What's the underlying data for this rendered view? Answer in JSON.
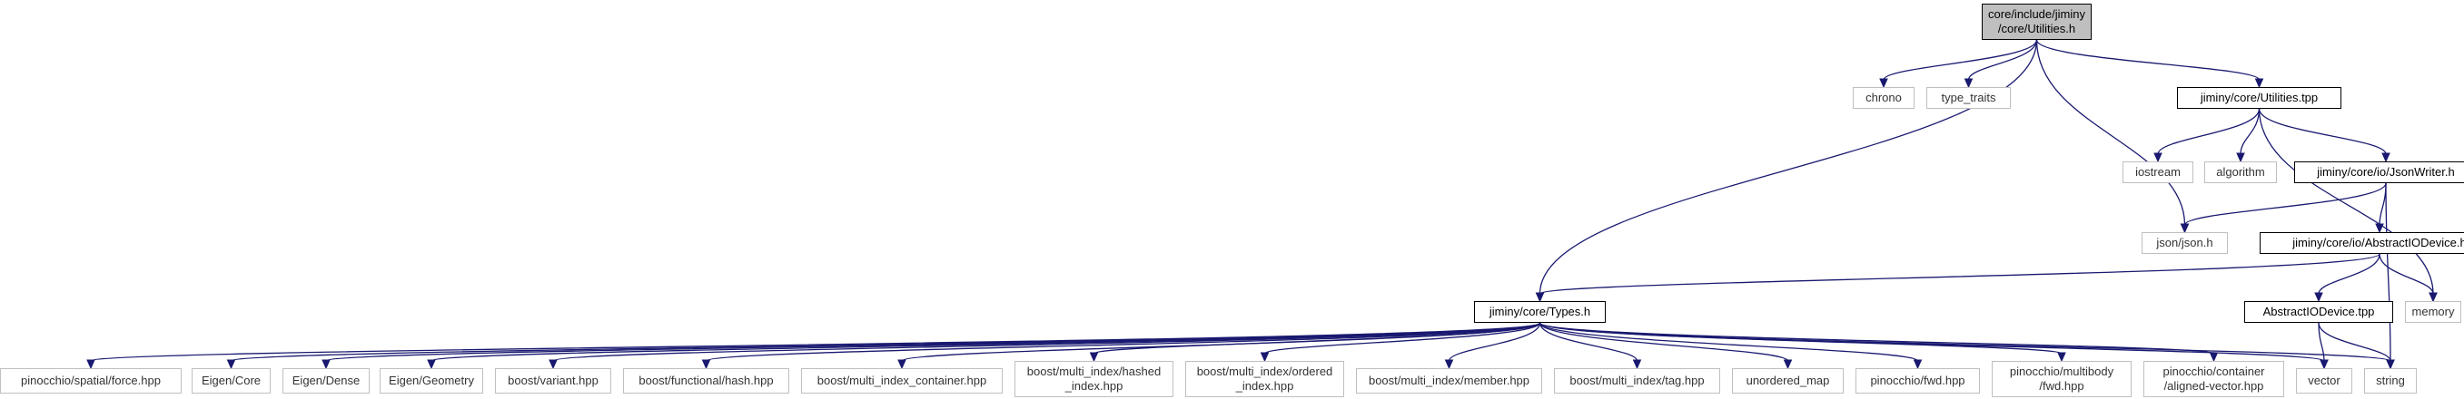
{
  "graph": {
    "colors": {
      "edge": "#191970",
      "root_fill": "#bfbfbf",
      "external_border": "#bfbfbf",
      "local_border": "#000000"
    },
    "nodes": [
      {
        "id": "utilities_h",
        "label": "core/include/jiminy\n/core/Utilities.h",
        "kind": "root"
      },
      {
        "id": "chrono",
        "label": "chrono",
        "kind": "external"
      },
      {
        "id": "type_traits",
        "label": "type_traits",
        "kind": "external"
      },
      {
        "id": "utilities_tpp",
        "label": "jiminy/core/Utilities.tpp",
        "kind": "local"
      },
      {
        "id": "iostream",
        "label": "iostream",
        "kind": "external"
      },
      {
        "id": "algorithm",
        "label": "algorithm",
        "kind": "external"
      },
      {
        "id": "jsonwriter_h",
        "label": "jiminy/core/io/JsonWriter.h",
        "kind": "local"
      },
      {
        "id": "json_h",
        "label": "json/json.h",
        "kind": "external"
      },
      {
        "id": "abstractiodevice_h",
        "label": "jiminy/core/io/AbstractIODevice.h",
        "kind": "local"
      },
      {
        "id": "memory",
        "label": "memory",
        "kind": "external"
      },
      {
        "id": "abstractiodevice_tpp",
        "label": "AbstractIODevice.tpp",
        "kind": "local"
      },
      {
        "id": "types_h",
        "label": "jiminy/core/Types.h",
        "kind": "local"
      },
      {
        "id": "force_hpp",
        "label": "pinocchio/spatial/force.hpp",
        "kind": "external"
      },
      {
        "id": "eigen_core",
        "label": "Eigen/Core",
        "kind": "external"
      },
      {
        "id": "eigen_dense",
        "label": "Eigen/Dense",
        "kind": "external"
      },
      {
        "id": "eigen_geometry",
        "label": "Eigen/Geometry",
        "kind": "external"
      },
      {
        "id": "boost_variant",
        "label": "boost/variant.hpp",
        "kind": "external"
      },
      {
        "id": "boost_hash",
        "label": "boost/functional/hash.hpp",
        "kind": "external"
      },
      {
        "id": "boost_mic",
        "label": "boost/multi_index_container.hpp",
        "kind": "external"
      },
      {
        "id": "boost_hashed",
        "label": "boost/multi_index/hashed\n_index.hpp",
        "kind": "external"
      },
      {
        "id": "boost_ordered",
        "label": "boost/multi_index/ordered\n_index.hpp",
        "kind": "external"
      },
      {
        "id": "boost_member",
        "label": "boost/multi_index/member.hpp",
        "kind": "external"
      },
      {
        "id": "boost_tag",
        "label": "boost/multi_index/tag.hpp",
        "kind": "external"
      },
      {
        "id": "unordered_map",
        "label": "unordered_map",
        "kind": "external"
      },
      {
        "id": "pin_fwd",
        "label": "pinocchio/fwd.hpp",
        "kind": "external"
      },
      {
        "id": "pin_mb_fwd",
        "label": "pinocchio/multibody\n/fwd.hpp",
        "kind": "external"
      },
      {
        "id": "pin_aligned",
        "label": "pinocchio/container\n/aligned-vector.hpp",
        "kind": "external"
      },
      {
        "id": "vector",
        "label": "vector",
        "kind": "external"
      },
      {
        "id": "string",
        "label": "string",
        "kind": "external"
      }
    ],
    "edges": [
      [
        "utilities_h",
        "chrono"
      ],
      [
        "utilities_h",
        "type_traits"
      ],
      [
        "utilities_h",
        "utilities_tpp"
      ],
      [
        "utilities_h",
        "json_h"
      ],
      [
        "utilities_h",
        "types_h"
      ],
      [
        "utilities_tpp",
        "iostream"
      ],
      [
        "utilities_tpp",
        "algorithm"
      ],
      [
        "utilities_tpp",
        "jsonwriter_h"
      ],
      [
        "utilities_tpp",
        "memory"
      ],
      [
        "jsonwriter_h",
        "json_h"
      ],
      [
        "jsonwriter_h",
        "abstractiodevice_h"
      ],
      [
        "jsonwriter_h",
        "string"
      ],
      [
        "abstractiodevice_h",
        "memory"
      ],
      [
        "abstractiodevice_h",
        "abstractiodevice_tpp"
      ],
      [
        "abstractiodevice_h",
        "types_h"
      ],
      [
        "abstractiodevice_tpp",
        "vector"
      ],
      [
        "abstractiodevice_tpp",
        "string"
      ],
      [
        "types_h",
        "force_hpp"
      ],
      [
        "types_h",
        "eigen_core"
      ],
      [
        "types_h",
        "eigen_dense"
      ],
      [
        "types_h",
        "eigen_geometry"
      ],
      [
        "types_h",
        "boost_variant"
      ],
      [
        "types_h",
        "boost_hash"
      ],
      [
        "types_h",
        "boost_mic"
      ],
      [
        "types_h",
        "boost_hashed"
      ],
      [
        "types_h",
        "boost_ordered"
      ],
      [
        "types_h",
        "boost_member"
      ],
      [
        "types_h",
        "boost_tag"
      ],
      [
        "types_h",
        "unordered_map"
      ],
      [
        "types_h",
        "pin_fwd"
      ],
      [
        "types_h",
        "pin_mb_fwd"
      ],
      [
        "types_h",
        "pin_aligned"
      ],
      [
        "types_h",
        "vector"
      ],
      [
        "types_h",
        "string"
      ]
    ]
  }
}
